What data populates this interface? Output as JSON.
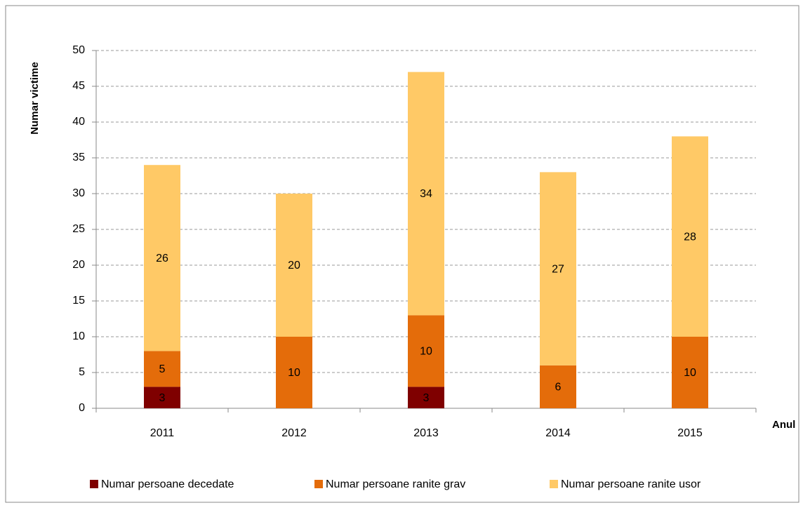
{
  "chart_data": {
    "type": "stacked_bar",
    "x_label": "Anul",
    "y_label": "Numar victime",
    "categories": [
      "2011",
      "2012",
      "2013",
      "2014",
      "2015"
    ],
    "series": [
      {
        "name": "Numar persoane decedate",
        "color": "#7f0000",
        "label_color": "#ffffff",
        "values": [
          3,
          0,
          3,
          0,
          0
        ]
      },
      {
        "name": "Numar persoane ranite grav",
        "color": "#e46c0a",
        "label_color": "#000000",
        "values": [
          5,
          10,
          10,
          6,
          10
        ]
      },
      {
        "name": "Numar persoane ranite usor",
        "color": "#ffc966",
        "label_color": "#000000",
        "values": [
          26,
          20,
          34,
          27,
          28
        ]
      }
    ],
    "ylim": [
      0,
      50
    ],
    "yticks": [
      0,
      5,
      10,
      15,
      20,
      25,
      30,
      35,
      40,
      45,
      50
    ],
    "grid": true,
    "legend": "bottom"
  }
}
